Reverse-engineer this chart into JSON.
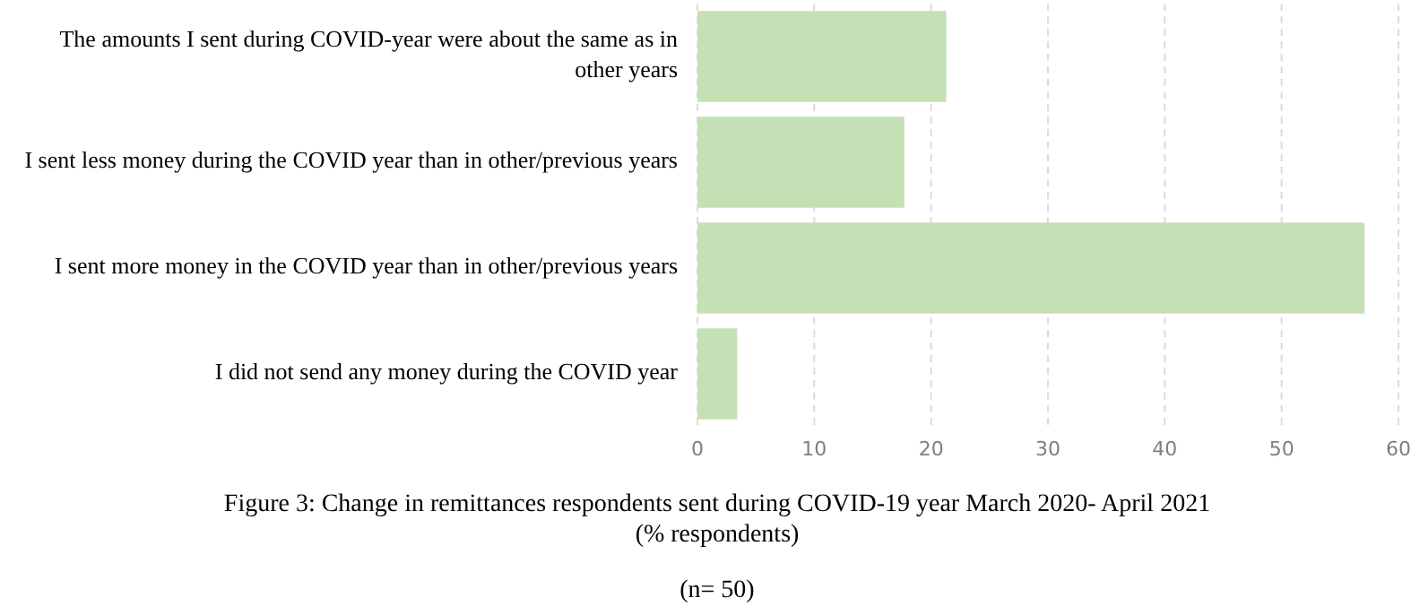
{
  "chart_data": {
    "type": "bar",
    "orientation": "horizontal",
    "title": "Figure 3: Change in remittances respondents sent during COVID-19 year March 2020- April 2021",
    "subtitle": "(% respondents)",
    "annotations": [
      "(n= 50)"
    ],
    "categories": [
      "The amounts I sent during COVID-year were about the same as in other years",
      "I sent less money during the COVID year than in other/previous years",
      "I sent more money in the COVID year than in other/previous years",
      "I did not send any money during the COVID year"
    ],
    "values": [
      21.3,
      17.7,
      57.1,
      3.4
    ],
    "color": "#c5e0b4",
    "xlim": [
      0,
      60
    ],
    "xticks": [
      0,
      10,
      20,
      30,
      40,
      50,
      60
    ],
    "grid": "x"
  }
}
